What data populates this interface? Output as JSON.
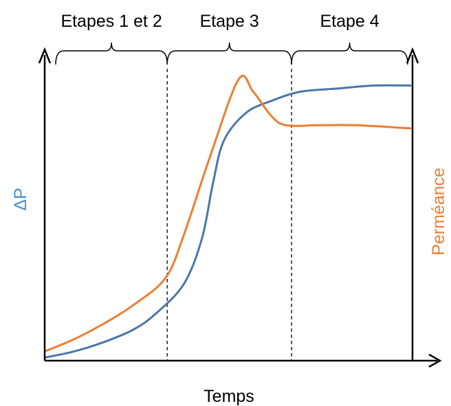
{
  "chart_data": {
    "type": "line",
    "xlabel": "Temps",
    "ylabel_left": "ΔP",
    "ylabel_right": "Perméance",
    "ticks": "none",
    "grid": false,
    "stages": [
      {
        "label": "Etapes 1 et 2",
        "start": 0,
        "end": 0.335
      },
      {
        "label": "Etape 3",
        "start": 0.335,
        "end": 0.675
      },
      {
        "label": "Etape 4",
        "start": 0.675,
        "end": 1.0
      }
    ],
    "series": [
      {
        "name": "ΔP",
        "color": "#4a76a8",
        "axis": "left",
        "points": [
          [
            0.0,
            0.01
          ],
          [
            0.08,
            0.03
          ],
          [
            0.16,
            0.06
          ],
          [
            0.24,
            0.1
          ],
          [
            0.3,
            0.15
          ],
          [
            0.38,
            0.25
          ],
          [
            0.43,
            0.4
          ],
          [
            0.46,
            0.58
          ],
          [
            0.49,
            0.72
          ],
          [
            0.55,
            0.81
          ],
          [
            0.62,
            0.85
          ],
          [
            0.7,
            0.88
          ],
          [
            0.8,
            0.89
          ],
          [
            0.9,
            0.9
          ],
          [
            1.0,
            0.9
          ]
        ]
      },
      {
        "name": "Perméance",
        "color": "#ed7d31",
        "axis": "right",
        "points": [
          [
            0.0,
            0.03
          ],
          [
            0.08,
            0.07
          ],
          [
            0.16,
            0.12
          ],
          [
            0.24,
            0.18
          ],
          [
            0.33,
            0.27
          ],
          [
            0.38,
            0.41
          ],
          [
            0.45,
            0.66
          ],
          [
            0.53,
            0.92
          ],
          [
            0.57,
            0.88
          ],
          [
            0.62,
            0.8
          ],
          [
            0.66,
            0.77
          ],
          [
            0.75,
            0.77
          ],
          [
            0.85,
            0.77
          ],
          [
            1.0,
            0.76
          ]
        ]
      }
    ],
    "colors": {
      "left_label": "#4a90c8",
      "right_label": "#ed7d31",
      "axis": "#000000"
    }
  }
}
